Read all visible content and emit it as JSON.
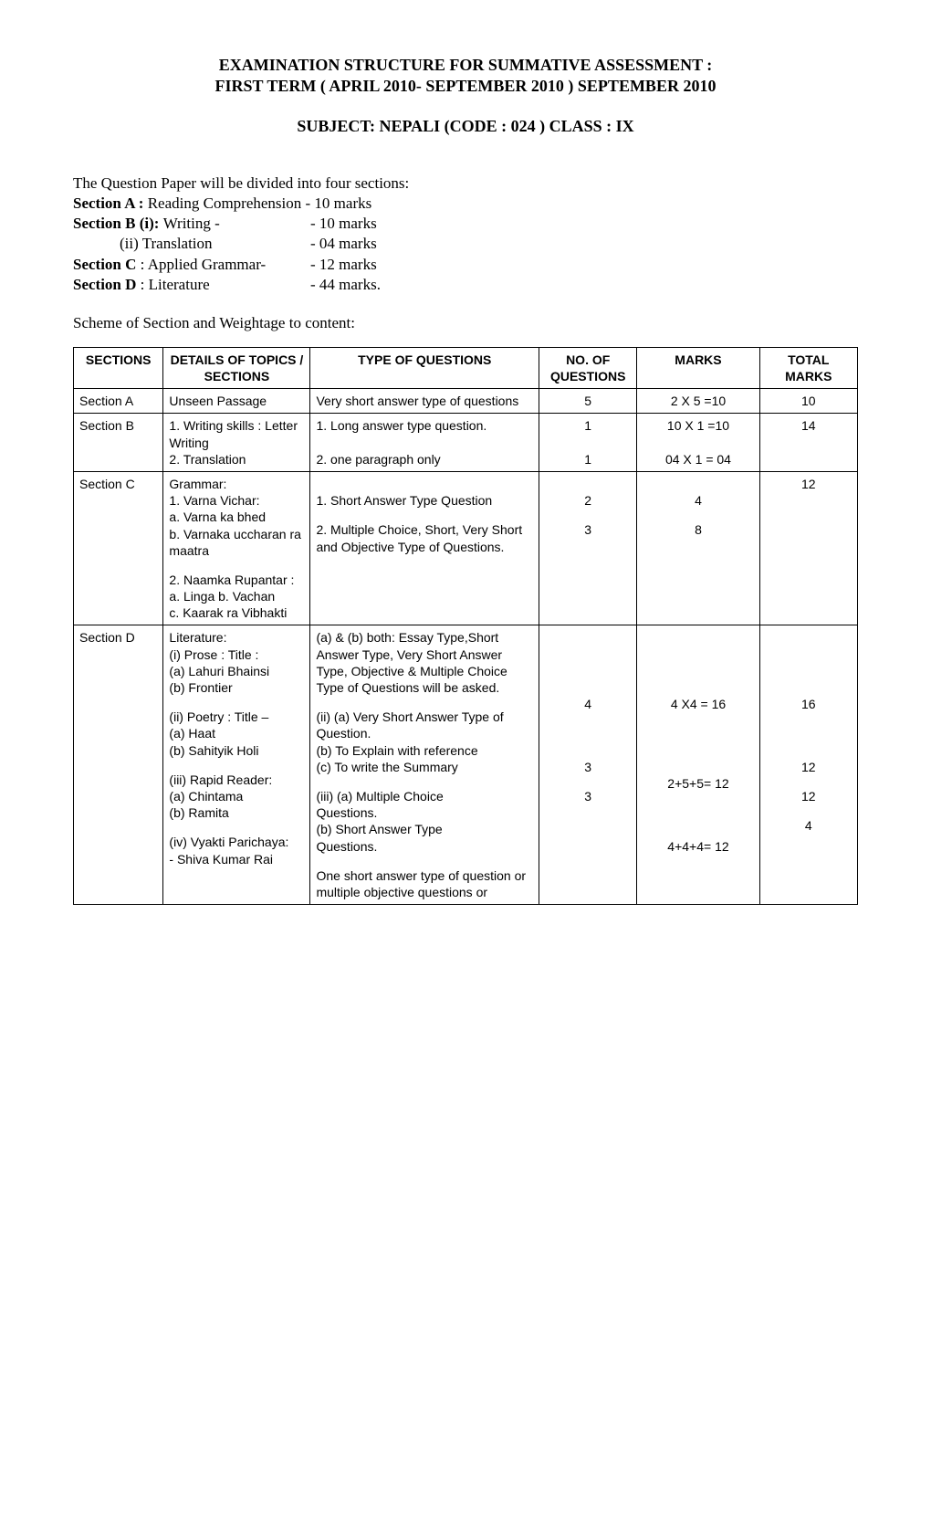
{
  "header": {
    "title_line1": "EXAMINATION STRUCTURE FOR SUMMATIVE ASSESSMENT :",
    "title_line2": "FIRST TERM ( APRIL  2010- SEPTEMBER 2010 ) SEPTEMBER 2010",
    "subject_line": "SUBJECT: NEPALI  (CODE : 024 )   CLASS :  IX"
  },
  "intro": {
    "lead": "The Question Paper will be divided into four sections:",
    "rows": [
      {
        "label": "Section A : ",
        "text": "Reading Comprehension - 10 marks",
        "bold_label": true
      },
      {
        "label": "Section B (i): ",
        "text": "Writing -",
        "marks": "- 10 marks",
        "bold_label": true
      },
      {
        "label": "",
        "text": "            (ii) Translation",
        "marks": "- 04 marks",
        "bold_label": false
      },
      {
        "label": "Section C ",
        "text": ": Applied Grammar-",
        "marks": "- 12 marks",
        "bold_label": true
      },
      {
        "label": "Section D ",
        "text": ": Literature",
        "marks": "- 44 marks.",
        "bold_label": true
      }
    ],
    "scheme_heading": "Scheme of Section and Weightage to content:"
  },
  "table": {
    "headers": {
      "sections": "SECTIONS",
      "details": "DETAILS OF TOPICS / SECTIONS",
      "type": "TYPE OF QUESTIONS",
      "noq": "NO. OF QUESTIONS",
      "marks": "MARKS",
      "total": "TOTAL MARKS"
    },
    "rows": [
      {
        "section": "Section  A",
        "details": "Unseen Passage",
        "type": "Very short answer type of questions",
        "noq": "5",
        "marks": "2 X 5 =10",
        "total": "10"
      },
      {
        "section": "Section  B",
        "details": "1. Writing skills : Letter Writing\n2. Translation",
        "type": "1. Long answer type question.\n\n2. one paragraph only",
        "noq": "1\n\n1",
        "marks": "10 X 1 =10\n\n04 X 1 = 04",
        "total": "14"
      },
      {
        "section": "Section C",
        "details_blocks": [
          "Grammar:\n1. Varna Vichar:\na. Varna ka bhed\nb. Varnaka uccharan ra maatra",
          "2. Naamka Rupantar :\na. Linga   b. Vachan\nc. Kaarak ra Vibhakti"
        ],
        "type_blocks": [
          "\n1. Short Answer Type Question",
          "2. Multiple Choice, Short, Very Short and Objective Type of Questions."
        ],
        "noq_blocks": [
          "\n2",
          "3"
        ],
        "marks_blocks": [
          "\n4",
          "8"
        ],
        "total": "12"
      },
      {
        "section": "Section  D",
        "details_blocks": [
          "Literature:\n(i) Prose : Title :\n(a)  Lahuri Bhainsi\n(b) Frontier",
          "(ii) Poetry : Title –\n(a) Haat\n(b) Sahityik Holi",
          "(iii) Rapid Reader:\n(a) Chintama\n(b) Ramita",
          "(iv) Vyakti Parichaya:\n- Shiva Kumar Rai"
        ],
        "type_blocks": [
          "(a) & (b)  both: Essay Type,Short Answer Type, Very Short Answer Type, Objective & Multiple Choice Type of Questions will be asked.",
          "(ii) (a) Very Short Answer Type of Question.\n(b) To Explain with reference\n(c) To write the Summary",
          "(iii) (a) Multiple Choice\n         Questions.\n(b) Short Answer Type\n         Questions.",
          "One short answer type of question or multiple objective questions or"
        ],
        "noq_blocks": [
          "\n\n\n\n4",
          "\n\n3",
          "3",
          ""
        ],
        "marks_blocks": [
          "\n\n\n\n4 X4 = 16",
          "\n\n\n2+5+5= 12",
          "\n\n4+4+4= 12",
          ""
        ],
        "total_blocks": [
          "\n\n\n\n16",
          "\n\n12",
          "12",
          "4"
        ]
      }
    ]
  }
}
